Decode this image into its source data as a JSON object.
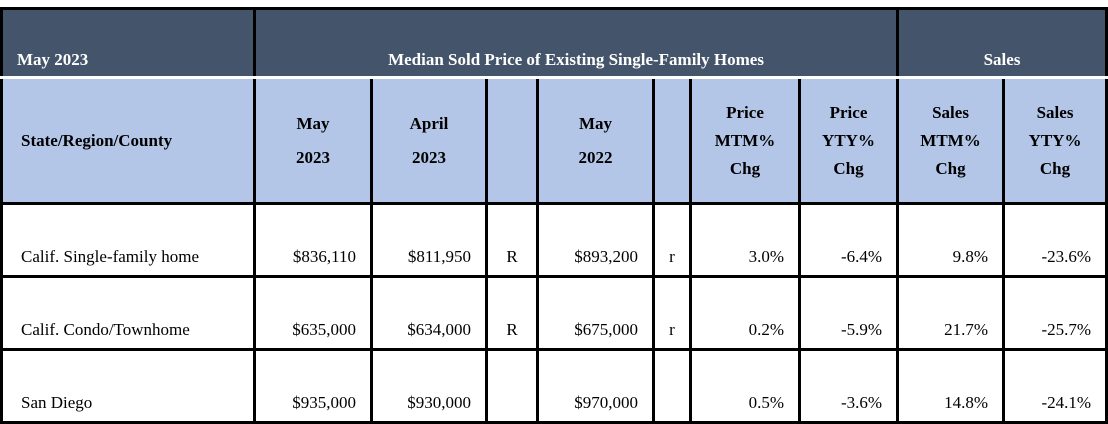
{
  "header": {
    "period": "May 2023",
    "price_group": "Median Sold Price of Existing Single-Family Homes",
    "sales_group": "Sales"
  },
  "columns": {
    "region": "State/Region/County",
    "may2023": [
      "May",
      "2023"
    ],
    "april2023": [
      "April",
      "2023"
    ],
    "may2022": [
      "May",
      "2022"
    ],
    "price_mtm": [
      "Price",
      "MTM%",
      "Chg"
    ],
    "price_yty": [
      "Price",
      "YTY%",
      "Chg"
    ],
    "sales_mtm": [
      "Sales",
      "MTM%",
      "Chg"
    ],
    "sales_yty": [
      "Sales",
      "YTY%",
      "Chg"
    ]
  },
  "rows": [
    {
      "region": "Calif. Single-family home",
      "may2023": "$836,110",
      "april2023": "$811,950",
      "rev_flag": "R",
      "may2022": "$893,200",
      "rev_flag2": "r",
      "price_mtm": "3.0%",
      "price_yty": "-6.4%",
      "sales_mtm": "9.8%",
      "sales_yty": "-23.6%"
    },
    {
      "region": "Calif. Condo/Townhome",
      "may2023": "$635,000",
      "april2023": "$634,000",
      "rev_flag": "R",
      "may2022": "$675,000",
      "rev_flag2": "r",
      "price_mtm": "0.2%",
      "price_yty": "-5.9%",
      "sales_mtm": "21.7%",
      "sales_yty": "-25.7%"
    },
    {
      "region": "San Diego",
      "may2023": "$935,000",
      "april2023": "$930,000",
      "rev_flag": "",
      "may2022": "$970,000",
      "rev_flag2": "",
      "price_mtm": "0.5%",
      "price_yty": "-3.6%",
      "sales_mtm": "14.8%",
      "sales_yty": "-24.1%"
    }
  ]
}
